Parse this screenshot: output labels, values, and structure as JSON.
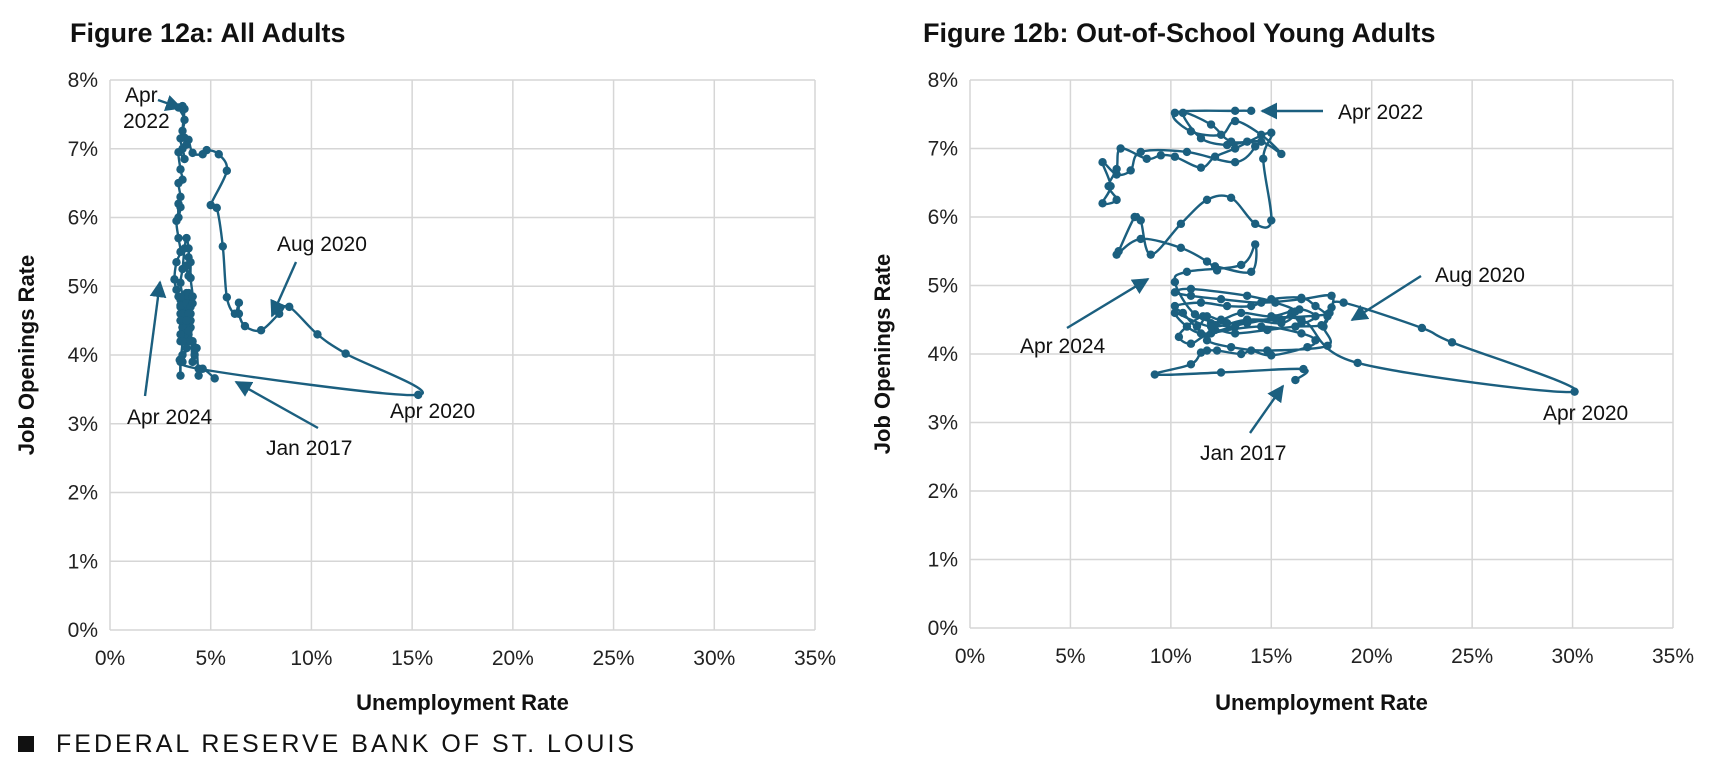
{
  "chart_data": [
    {
      "type": "line",
      "title": "Figure 12a: All Adults",
      "xlabel": "Unemployment Rate",
      "ylabel": "Job Openings Rate",
      "xlim": [
        0,
        35
      ],
      "ylim": [
        0,
        8
      ],
      "x_ticks": [
        "0%",
        "5%",
        "10%",
        "15%",
        "20%",
        "25%",
        "30%",
        "35%"
      ],
      "y_ticks": [
        "0%",
        "1%",
        "2%",
        "3%",
        "4%",
        "5%",
        "6%",
        "7%",
        "8%"
      ],
      "grid": true,
      "series": [
        {
          "color": "#1b5f7f",
          "points": [
            [
              5.2,
              3.66
            ],
            [
              4.6,
              3.8
            ],
            [
              4.4,
              3.7
            ],
            [
              4.3,
              4.1
            ],
            [
              4.1,
              4.2
            ],
            [
              4.2,
              4.0
            ],
            [
              4.1,
              3.9
            ],
            [
              4.0,
              4.4
            ],
            [
              3.9,
              4.6
            ],
            [
              3.8,
              4.4
            ],
            [
              3.7,
              4.3
            ],
            [
              3.9,
              4.2
            ],
            [
              3.8,
              4.1
            ],
            [
              3.6,
              3.9
            ],
            [
              3.9,
              4.3
            ],
            [
              4.0,
              4.5
            ],
            [
              3.8,
              4.7
            ],
            [
              3.7,
              4.5
            ],
            [
              3.6,
              4.6
            ],
            [
              3.5,
              4.8
            ],
            [
              3.6,
              4.5
            ],
            [
              3.7,
              4.3
            ],
            [
              3.5,
              4.2
            ],
            [
              3.6,
              4.4
            ],
            [
              3.5,
              4.7
            ],
            [
              3.8,
              4.9
            ],
            [
              3.6,
              4.7
            ],
            [
              3.5,
              4.6
            ],
            [
              3.9,
              4.7
            ],
            [
              3.6,
              4.6
            ],
            [
              3.6,
              4.4
            ],
            [
              3.5,
              4.5
            ],
            [
              3.5,
              4.3
            ],
            [
              3.6,
              4.2
            ],
            [
              3.5,
              3.9
            ],
            [
              3.5,
              3.7
            ],
            [
              3.6,
              4.0
            ],
            [
              4.4,
              3.8
            ],
            [
              15.3,
              3.42
            ],
            [
              11.7,
              4.02
            ],
            [
              10.3,
              4.3
            ],
            [
              8.9,
              4.7
            ],
            [
              8.4,
              4.6
            ],
            [
              7.5,
              4.36
            ],
            [
              6.7,
              4.42
            ],
            [
              6.4,
              4.6
            ],
            [
              6.4,
              4.76
            ],
            [
              6.2,
              4.6
            ],
            [
              5.8,
              4.84
            ],
            [
              5.6,
              5.58
            ],
            [
              5.3,
              6.14
            ],
            [
              5.0,
              6.18
            ],
            [
              5.8,
              6.68
            ],
            [
              5.4,
              6.92
            ],
            [
              4.8,
              6.98
            ],
            [
              4.6,
              6.92
            ],
            [
              4.1,
              6.94
            ],
            [
              3.9,
              7.13
            ],
            [
              3.8,
              7.06
            ],
            [
              3.7,
              7.16
            ],
            [
              3.6,
              7.26
            ],
            [
              3.7,
              7.58
            ],
            [
              3.6,
              7.62
            ],
            [
              3.4,
              7.6
            ],
            [
              3.7,
              7.42
            ],
            [
              3.5,
              7.15
            ],
            [
              3.6,
              7.0
            ],
            [
              3.7,
              6.85
            ],
            [
              3.4,
              6.95
            ],
            [
              3.5,
              6.7
            ],
            [
              3.6,
              6.55
            ],
            [
              3.4,
              6.5
            ],
            [
              3.5,
              6.3
            ],
            [
              3.4,
              6.2
            ],
            [
              3.4,
              6.0
            ],
            [
              3.5,
              6.15
            ],
            [
              3.3,
              5.95
            ],
            [
              3.4,
              5.7
            ],
            [
              3.5,
              5.5
            ],
            [
              3.3,
              5.35
            ],
            [
              3.2,
              5.1
            ],
            [
              3.3,
              4.95
            ],
            [
              3.4,
              4.85
            ],
            [
              3.5,
              4.72
            ],
            [
              3.6,
              4.85
            ],
            [
              3.5,
              5.05
            ],
            [
              3.6,
              5.25
            ],
            [
              3.7,
              5.55
            ],
            [
              3.8,
              5.7
            ],
            [
              3.9,
              5.55
            ],
            [
              3.9,
              5.42
            ],
            [
              3.8,
              5.3
            ],
            [
              3.9,
              5.15
            ],
            [
              4.0,
              5.35
            ],
            [
              4.0,
              5.12
            ],
            [
              4.1,
              4.85
            ],
            [
              3.9,
              4.85
            ],
            [
              3.8,
              4.75
            ],
            [
              3.9,
              4.9
            ],
            [
              4.0,
              4.7
            ],
            [
              4.1,
              4.75
            ],
            [
              4.0,
              4.6
            ],
            [
              3.9,
              4.6
            ],
            [
              3.8,
              4.5
            ],
            [
              3.9,
              4.35
            ],
            [
              4.1,
              4.85
            ]
          ]
        }
      ],
      "annotations": [
        {
          "text": "Apr 2022",
          "lines": [
            "Apr",
            "2022"
          ]
        },
        {
          "text": "Aug 2020"
        },
        {
          "text": "Apr 2024"
        },
        {
          "text": "Jan 2017"
        },
        {
          "text": "Apr 2020"
        }
      ]
    },
    {
      "type": "line",
      "title": "Figure 12b: Out-of-School Young Adults",
      "xlabel": "Unemployment Rate",
      "ylabel": "Job Openings Rate",
      "xlim": [
        0,
        35
      ],
      "ylim": [
        0,
        8
      ],
      "x_ticks": [
        "0%",
        "5%",
        "10%",
        "15%",
        "20%",
        "25%",
        "30%",
        "35%"
      ],
      "y_ticks": [
        "0%",
        "1%",
        "2%",
        "3%",
        "4%",
        "5%",
        "6%",
        "7%",
        "8%"
      ],
      "grid": true,
      "series": [
        {
          "color": "#1b5f7f",
          "points": [
            [
              16.2,
              3.62
            ],
            [
              16.6,
              3.78
            ],
            [
              12.5,
              3.73
            ],
            [
              9.2,
              3.7
            ],
            [
              11.0,
              3.85
            ],
            [
              11.5,
              4.02
            ],
            [
              11.8,
              4.05
            ],
            [
              12.3,
              4.05
            ],
            [
              13.5,
              4.0
            ],
            [
              14.0,
              4.05
            ],
            [
              15.0,
              3.98
            ],
            [
              16.8,
              4.1
            ],
            [
              17.2,
              4.2
            ],
            [
              16.5,
              4.3
            ],
            [
              14.5,
              4.4
            ],
            [
              12.0,
              4.3
            ],
            [
              11.0,
              4.15
            ],
            [
              10.4,
              4.25
            ],
            [
              10.8,
              4.4
            ],
            [
              11.6,
              4.55
            ],
            [
              12.0,
              4.45
            ],
            [
              13.2,
              4.4
            ],
            [
              13.8,
              4.5
            ],
            [
              15.5,
              4.5
            ],
            [
              16.0,
              4.6
            ],
            [
              16.5,
              4.45
            ],
            [
              17.2,
              4.55
            ],
            [
              16.4,
              4.65
            ],
            [
              15.0,
              4.55
            ],
            [
              13.5,
              4.6
            ],
            [
              12.5,
              4.5
            ],
            [
              11.8,
              4.55
            ],
            [
              11.3,
              4.4
            ],
            [
              10.6,
              4.6
            ],
            [
              10.2,
              4.7
            ],
            [
              11.5,
              4.75
            ],
            [
              12.8,
              4.7
            ],
            [
              14.0,
              4.7
            ],
            [
              15.0,
              4.8
            ],
            [
              16.5,
              4.82
            ],
            [
              17.2,
              4.7
            ],
            [
              17.8,
              4.55
            ],
            [
              17.5,
              4.42
            ],
            [
              16.2,
              4.4
            ],
            [
              14.8,
              4.35
            ],
            [
              13.2,
              4.3
            ],
            [
              12.2,
              4.35
            ],
            [
              11.8,
              4.2
            ],
            [
              13.0,
              4.1
            ],
            [
              14.8,
              4.05
            ],
            [
              17.8,
              4.12
            ],
            [
              17.6,
              4.4
            ],
            [
              17.9,
              4.6
            ],
            [
              18.0,
              4.85
            ],
            [
              16.5,
              4.8
            ],
            [
              14.5,
              4.75
            ],
            [
              12.5,
              4.8
            ],
            [
              11.0,
              4.85
            ],
            [
              10.2,
              4.9
            ],
            [
              11.0,
              4.95
            ],
            [
              13.8,
              4.85
            ],
            [
              15.2,
              4.75
            ],
            [
              16.2,
              4.62
            ],
            [
              15.5,
              4.45
            ],
            [
              13.8,
              4.5
            ],
            [
              12.0,
              4.4
            ],
            [
              10.2,
              4.6
            ],
            [
              11.5,
              4.3
            ],
            [
              13.8,
              4.45
            ],
            [
              16.5,
              4.5
            ],
            [
              19.3,
              3.87
            ],
            [
              30.1,
              3.45
            ],
            [
              24.0,
              4.17
            ],
            [
              22.5,
              4.38
            ],
            [
              18.6,
              4.75
            ],
            [
              18.0,
              4.68
            ],
            [
              17.8,
              4.58
            ],
            [
              15.2,
              4.52
            ],
            [
              12.8,
              4.45
            ],
            [
              11.2,
              4.58
            ],
            [
              10.2,
              5.05
            ],
            [
              10.8,
              5.2
            ],
            [
              13.5,
              5.3
            ],
            [
              14.2,
              5.6
            ],
            [
              14.0,
              5.2
            ],
            [
              12.2,
              5.28
            ],
            [
              12.3,
              5.22
            ],
            [
              11.8,
              5.35
            ],
            [
              10.5,
              5.55
            ],
            [
              8.5,
              5.68
            ],
            [
              7.3,
              5.45
            ],
            [
              7.4,
              5.5
            ],
            [
              8.2,
              6.0
            ],
            [
              8.5,
              5.95
            ],
            [
              9.0,
              5.45
            ],
            [
              10.5,
              5.9
            ],
            [
              11.8,
              6.25
            ],
            [
              13.0,
              6.28
            ],
            [
              14.2,
              5.9
            ],
            [
              15.0,
              5.95
            ],
            [
              14.6,
              6.85
            ],
            [
              15.0,
              7.23
            ],
            [
              13.2,
              7.0
            ],
            [
              12.2,
              6.88
            ],
            [
              11.5,
              6.72
            ],
            [
              10.2,
              6.88
            ],
            [
              9.5,
              6.9
            ],
            [
              8.8,
              6.85
            ],
            [
              7.5,
              7.0
            ],
            [
              7.3,
              6.7
            ],
            [
              6.9,
              6.45
            ],
            [
              7.3,
              6.25
            ],
            [
              6.6,
              6.2
            ],
            [
              7.0,
              6.45
            ],
            [
              6.6,
              6.8
            ],
            [
              7.3,
              6.62
            ],
            [
              8.0,
              6.68
            ],
            [
              8.5,
              6.95
            ],
            [
              10.8,
              6.95
            ],
            [
              13.2,
              6.8
            ],
            [
              14.2,
              7.03
            ],
            [
              13.8,
              7.1
            ],
            [
              12.8,
              7.05
            ],
            [
              11.5,
              7.15
            ],
            [
              10.6,
              7.52
            ],
            [
              12.0,
              7.35
            ],
            [
              13.0,
              7.1
            ],
            [
              14.5,
              7.1
            ],
            [
              15.5,
              6.92
            ],
            [
              14.5,
              7.2
            ],
            [
              13.2,
              7.4
            ],
            [
              12.5,
              7.2
            ],
            [
              11.0,
              7.25
            ],
            [
              10.2,
              7.52
            ],
            [
              13.2,
              7.55
            ],
            [
              14.0,
              7.55
            ]
          ]
        }
      ],
      "annotations": [
        {
          "text": "Apr 2022"
        },
        {
          "text": "Aug 2020"
        },
        {
          "text": "Apr 2024"
        },
        {
          "text": "Jan 2017"
        },
        {
          "text": "Apr 2020"
        }
      ]
    }
  ],
  "footer": {
    "organization": "FEDERAL RESERVE BANK OF ST. LOUIS"
  }
}
